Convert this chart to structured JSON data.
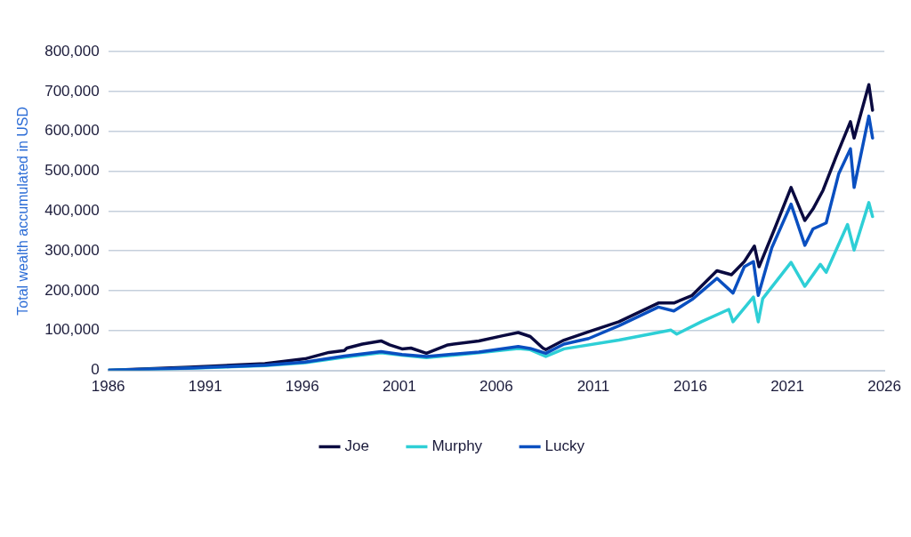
{
  "chart_data": {
    "type": "line",
    "ylabel": "Total wealth accumulated in USD",
    "xlim": [
      1986,
      2026
    ],
    "xticks": [
      1986,
      1991,
      1996,
      2001,
      2006,
      2011,
      2016,
      2021,
      2026
    ],
    "ylim": [
      0,
      800000
    ],
    "yticks": [
      0,
      {
        "value": 100000,
        "label": "100,000"
      },
      {
        "value": 200000,
        "label": "200,000"
      },
      {
        "value": 300000,
        "label": "300,000"
      },
      {
        "value": 400000,
        "label": "400,000"
      },
      {
        "value": 500000,
        "label": "500,000"
      },
      {
        "value": 600000,
        "label": "600,000"
      },
      {
        "value": 700000,
        "label": "700,000"
      },
      {
        "value": 800000,
        "label": "800,000"
      }
    ],
    "grid": "y",
    "legend": "bottom",
    "marker": "none",
    "line_style": "solid",
    "series": [
      {
        "name": "Joe",
        "color": "#0a0a40",
        "x": [
          1986,
          1990.15,
          1994.07,
          1996.14,
          1997.37,
          1998.17,
          1998.3,
          1999.1,
          2000.06,
          2000.5,
          2001.14,
          2001.6,
          2002.4,
          2003.5,
          2005.1,
          2006.33,
          2007.13,
          2007.75,
          2008.4,
          2008.55,
          2009.49,
          2010.76,
          2012.32,
          2014.35,
          2015.15,
          2016.09,
          2017.37,
          2018.12,
          2018.78,
          2019.3,
          2019.54,
          2020.34,
          2021.19,
          2021.9,
          2022.32,
          2022.84,
          2023.5,
          2024.25,
          2024.44,
          2025.2,
          2025.39
        ],
        "values": [
          0,
          8000,
          17000,
          29000,
          45000,
          50000,
          56000,
          66000,
          74000,
          64000,
          54000,
          56000,
          43000,
          64000,
          74000,
          87000,
          95000,
          85000,
          56000,
          52000,
          76000,
          97000,
          122000,
          169000,
          169000,
          188000,
          250000,
          240000,
          273000,
          312000,
          260000,
          355000,
          459000,
          376000,
          405000,
          452000,
          535000,
          624000,
          583000,
          717000,
          653000
        ]
      },
      {
        "name": "Murphy",
        "color": "#2ecfd6",
        "x": [
          1986,
          1990.15,
          1994.07,
          1996.14,
          1998.17,
          2000.06,
          2001.14,
          2002.4,
          2005.1,
          2007.13,
          2007.75,
          2008.55,
          2009.49,
          2012.32,
          2015.0,
          2015.3,
          2016.57,
          2017.98,
          2018.2,
          2019.25,
          2019.5,
          2019.73,
          2021.19,
          2021.9,
          2022.7,
          2023.0,
          2024.1,
          2024.44,
          2025.2,
          2025.39
        ],
        "values": [
          0,
          5000,
          12000,
          19000,
          33000,
          44000,
          38000,
          32000,
          44000,
          55000,
          52000,
          35000,
          54000,
          76000,
          101000,
          91000,
          122000,
          153000,
          122000,
          184000,
          122000,
          180000,
          271000,
          211000,
          266000,
          246000,
          366000,
          302000,
          421000,
          386000
        ]
      },
      {
        "name": "Lucky",
        "color": "#0a4fc0",
        "x": [
          1986,
          1990.15,
          1994.07,
          1996.14,
          1998.17,
          2000.06,
          2001.14,
          2002.4,
          2005.1,
          2007.13,
          2007.75,
          2008.55,
          2009.49,
          2010.76,
          2012.32,
          2014.35,
          2015.15,
          2016.09,
          2017.37,
          2018.2,
          2018.78,
          2019.25,
          2019.5,
          2020.2,
          2021.19,
          2021.9,
          2022.32,
          2023.0,
          2023.65,
          2024.25,
          2024.44,
          2025.2,
          2025.39
        ],
        "values": [
          0,
          6000,
          13000,
          21000,
          36000,
          47000,
          40000,
          35000,
          46000,
          60000,
          55000,
          43000,
          66000,
          80000,
          112000,
          159000,
          149000,
          178000,
          231000,
          194000,
          260000,
          273000,
          188000,
          308000,
          417000,
          314000,
          355000,
          370000,
          494000,
          556000,
          459000,
          638000,
          583000
        ]
      }
    ]
  }
}
